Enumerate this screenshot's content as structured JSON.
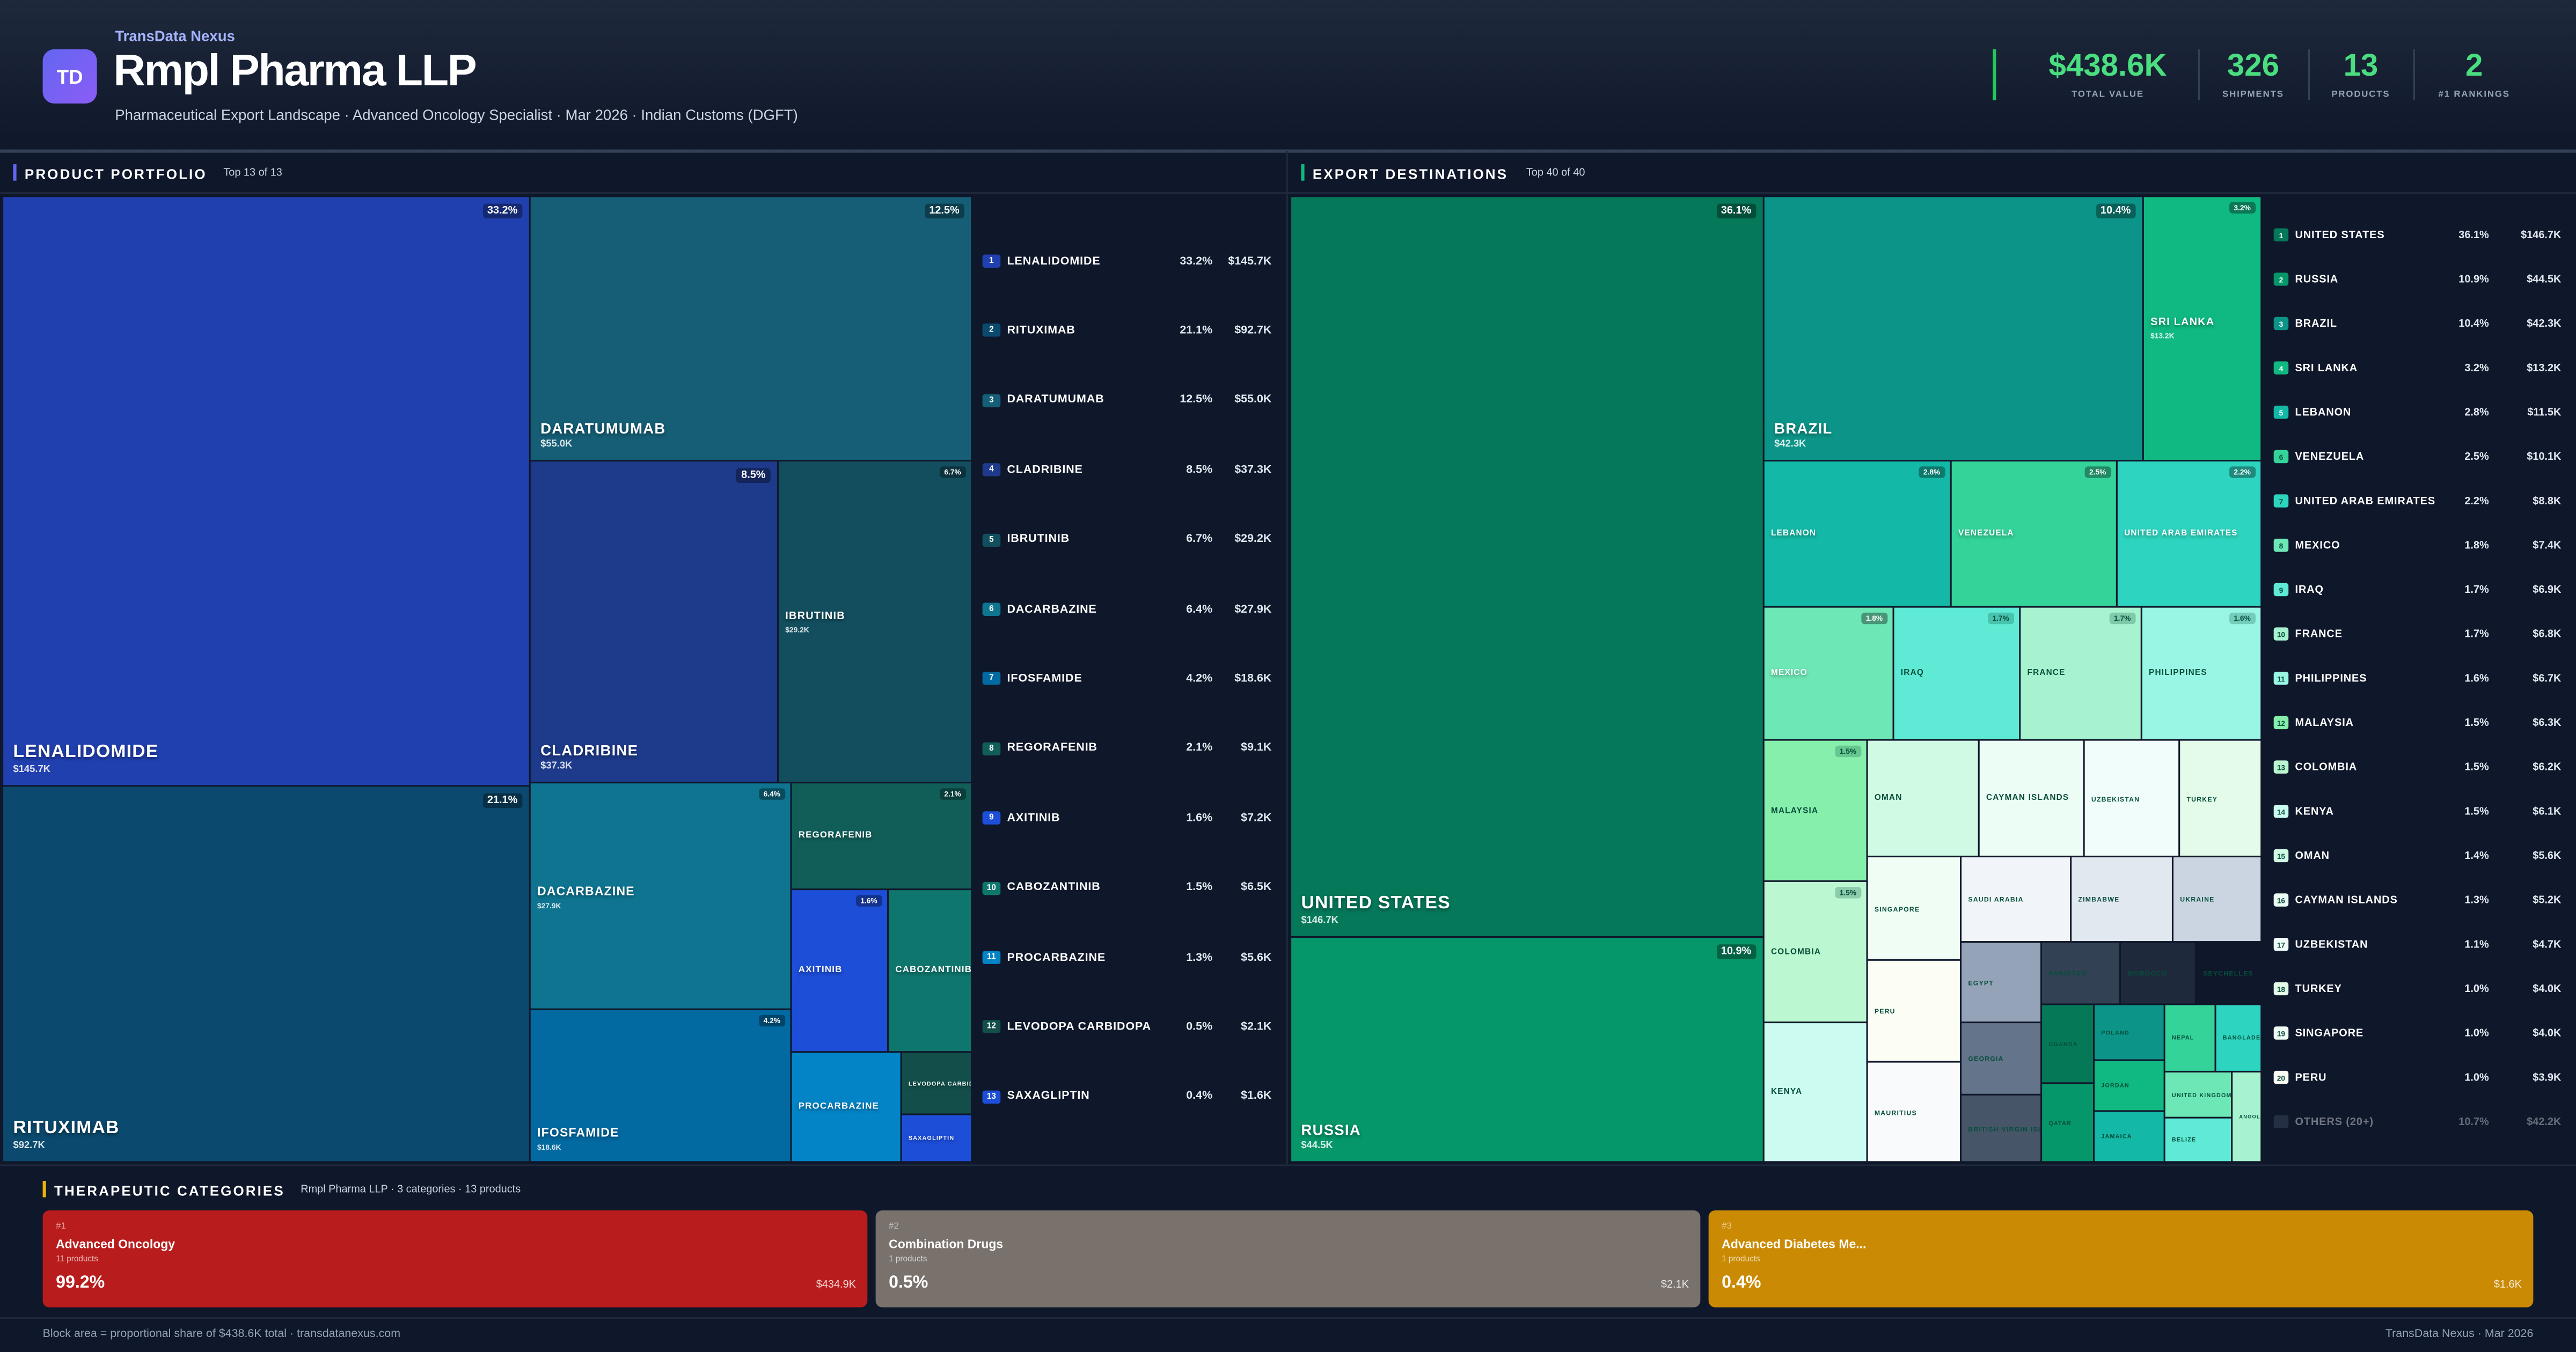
{
  "header": {
    "brand": "TransData Nexus",
    "logo": "TD",
    "title": "Rmpl Pharma LLP",
    "subtitle": "Pharmaceutical Export Landscape · Advanced Oncology Specialist · Mar 2026 · Indian Customs (DGFT)",
    "stats": [
      {
        "value": "$438.6K",
        "label": "TOTAL VALUE"
      },
      {
        "value": "326",
        "label": "SHIPMENTS"
      },
      {
        "value": "13",
        "label": "PRODUCTS"
      },
      {
        "value": "2",
        "label": "#1 RANKINGS"
      }
    ]
  },
  "products": {
    "title": "PRODUCT PORTFOLIO",
    "subtitle": "Top 13 of 13",
    "accent": "#6366f1",
    "items": [
      {
        "rank": "1",
        "name": "LENALIDOMIDE",
        "pct": "33.2%",
        "value": "$145.7K",
        "color": "#2140b0"
      },
      {
        "rank": "2",
        "name": "RITUXIMAB",
        "pct": "21.1%",
        "value": "$92.7K",
        "color": "#0b4a6e"
      },
      {
        "rank": "3",
        "name": "DARATUMUMAB",
        "pct": "12.5%",
        "value": "$55.0K",
        "color": "#155e75"
      },
      {
        "rank": "4",
        "name": "CLADRIBINE",
        "pct": "8.5%",
        "value": "$37.3K",
        "color": "#1e3a8a"
      },
      {
        "rank": "5",
        "name": "IBRUTINIB",
        "pct": "6.7%",
        "value": "$29.2K",
        "color": "#134e5e"
      },
      {
        "rank": "6",
        "name": "DACARBAZINE",
        "pct": "6.4%",
        "value": "$27.9K",
        "color": "#0e7490"
      },
      {
        "rank": "7",
        "name": "IFOSFAMIDE",
        "pct": "4.2%",
        "value": "$18.6K",
        "color": "#0369a1"
      },
      {
        "rank": "8",
        "name": "REGORAFENIB",
        "pct": "2.1%",
        "value": "$9.1K",
        "color": "#115e59"
      },
      {
        "rank": "9",
        "name": "AXITINIB",
        "pct": "1.6%",
        "value": "$7.2K",
        "color": "#1d4ed8"
      },
      {
        "rank": "10",
        "name": "CABOZANTINIB",
        "pct": "1.5%",
        "value": "$6.5K",
        "color": "#0f766e"
      },
      {
        "rank": "11",
        "name": "PROCARBAZINE",
        "pct": "1.3%",
        "value": "$5.6K",
        "color": "#0284c7"
      },
      {
        "rank": "12",
        "name": "LEVODOPA CARBIDOPA",
        "pct": "0.5%",
        "value": "$2.1K",
        "color": "#134e4a"
      },
      {
        "rank": "13",
        "name": "SAXAGLIPTIN",
        "pct": "0.4%",
        "value": "$1.6K",
        "color": "#1d4ed8"
      }
    ]
  },
  "destinations": {
    "title": "EXPORT DESTINATIONS",
    "subtitle": "Top 40 of 40",
    "accent": "#10b981",
    "items": [
      {
        "rank": "1",
        "name": "UNITED STATES",
        "pct": "36.1%",
        "value": "$146.7K",
        "color": "#05785a"
      },
      {
        "rank": "2",
        "name": "RUSSIA",
        "pct": "10.9%",
        "value": "$44.5K",
        "color": "#059669"
      },
      {
        "rank": "3",
        "name": "BRAZIL",
        "pct": "10.4%",
        "value": "$42.3K",
        "color": "#0d9488"
      },
      {
        "rank": "4",
        "name": "SRI LANKA",
        "pct": "3.2%",
        "value": "$13.2K",
        "color": "#10b981"
      },
      {
        "rank": "5",
        "name": "LEBANON",
        "pct": "2.8%",
        "value": "$11.5K",
        "color": "#14b8a6"
      },
      {
        "rank": "6",
        "name": "VENEZUELA",
        "pct": "2.5%",
        "value": "$10.1K",
        "color": "#34d399"
      },
      {
        "rank": "7",
        "name": "UNITED ARAB EMIRATES",
        "pct": "2.2%",
        "value": "$8.8K",
        "color": "#2dd4bf"
      },
      {
        "rank": "8",
        "name": "MEXICO",
        "pct": "1.8%",
        "value": "$7.4K",
        "color": "#6ee7b7"
      },
      {
        "rank": "9",
        "name": "IRAQ",
        "pct": "1.7%",
        "value": "$6.9K",
        "color": "#5eead4"
      },
      {
        "rank": "10",
        "name": "FRANCE",
        "pct": "1.7%",
        "value": "$6.8K",
        "color": "#a7f3d0"
      },
      {
        "rank": "11",
        "name": "PHILIPPINES",
        "pct": "1.6%",
        "value": "$6.7K",
        "color": "#99f6e4"
      },
      {
        "rank": "12",
        "name": "MALAYSIA",
        "pct": "1.5%",
        "value": "$6.3K",
        "color": "#86efac"
      },
      {
        "rank": "13",
        "name": "COLOMBIA",
        "pct": "1.5%",
        "value": "$6.2K",
        "color": "#bbf7d0"
      },
      {
        "rank": "14",
        "name": "KENYA",
        "pct": "1.5%",
        "value": "$6.1K",
        "color": "#ccfbf1"
      },
      {
        "rank": "15",
        "name": "OMAN",
        "pct": "1.4%",
        "value": "$5.6K",
        "color": "#d1fae5"
      },
      {
        "rank": "16",
        "name": "CAYMAN ISLANDS",
        "pct": "1.3%",
        "value": "$5.2K",
        "color": "#ecfdf5"
      },
      {
        "rank": "17",
        "name": "UZBEKISTAN",
        "pct": "1.1%",
        "value": "$4.7K",
        "color": "#f0fdfa"
      },
      {
        "rank": "18",
        "name": "TURKEY",
        "pct": "1.0%",
        "value": "$4.0K",
        "color": "#e3fbe8"
      },
      {
        "rank": "19",
        "name": "SINGAPORE",
        "pct": "1.0%",
        "value": "$4.0K",
        "color": "#f0fdf4"
      },
      {
        "rank": "20",
        "name": "PERU",
        "pct": "1.0%",
        "value": "$3.9K",
        "color": "#fcfdf5"
      }
    ],
    "more": [
      {
        "name": "MAURITIUS",
        "color": "#f8fafc"
      },
      {
        "name": "SAUDI ARABIA",
        "color": "#f1f5f9"
      },
      {
        "name": "ZIMBABWE",
        "color": "#e2e8f0"
      },
      {
        "name": "UKRAINE",
        "color": "#cbd5e1"
      },
      {
        "name": "EGYPT",
        "color": "#94a3b8"
      },
      {
        "name": "GEORGIA",
        "color": "#64748b"
      },
      {
        "name": "BRITISH VIRGIN ISLANDS",
        "color": "#475569"
      },
      {
        "name": "PAKISTAN",
        "color": "#334155"
      },
      {
        "name": "MOROCCO",
        "color": "#1e293b"
      },
      {
        "name": "SEYCHELLES",
        "color": "#0f172a"
      },
      {
        "name": "UGANDA",
        "color": "#047857"
      },
      {
        "name": "QATAR",
        "color": "#059669"
      },
      {
        "name": "POLAND",
        "color": "#0d9488"
      },
      {
        "name": "JORDAN",
        "color": "#10b981"
      },
      {
        "name": "JAMAICA",
        "color": "#14b8a6"
      },
      {
        "name": "NEPAL",
        "color": "#34d399"
      },
      {
        "name": "BANGLADESH",
        "color": "#2dd4bf"
      },
      {
        "name": "UNITED KINGDOM",
        "color": "#6ee7b7"
      },
      {
        "name": "BELIZE",
        "color": "#5eead4"
      },
      {
        "name": "ANGOLA",
        "color": "#a7f3d0"
      }
    ],
    "others": {
      "name": "OTHERS (20+)",
      "pct": "10.7%",
      "value": "$42.2K"
    }
  },
  "categories": {
    "title": "THERAPEUTIC CATEGORIES",
    "subtitle": "Rmpl Pharma LLP · 3 categories · 13 products",
    "accent": "#eab308",
    "items": [
      {
        "rank": "#1",
        "name": "Advanced Oncology",
        "products": "11 products",
        "pct": "99.2%",
        "value": "$434.9K",
        "color": "#b91c1c"
      },
      {
        "rank": "#2",
        "name": "Combination Drugs",
        "products": "1 products",
        "pct": "0.5%",
        "value": "$2.1K",
        "color": "#78716c"
      },
      {
        "rank": "#3",
        "name": "Advanced Diabetes Me...",
        "products": "1 products",
        "pct": "0.4%",
        "value": "$1.6K",
        "color": "#ca8a04"
      }
    ]
  },
  "footer": {
    "left": "Block area = proportional share of $438.6K total · transdatanexus.com",
    "right": "TransData Nexus · Mar 2026"
  }
}
